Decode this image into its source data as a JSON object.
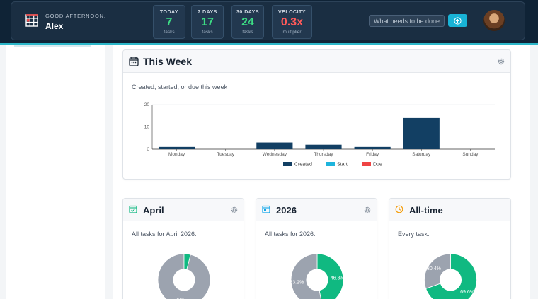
{
  "header": {
    "greeting": "GOOD AFTERNOON,",
    "username": "Alex",
    "stats": [
      {
        "label": "TODAY",
        "value": "7",
        "sub": "tasks"
      },
      {
        "label": "7 DAYS",
        "value": "17",
        "sub": "tasks"
      },
      {
        "label": "30 DAYS",
        "value": "24",
        "sub": "tasks"
      },
      {
        "label": "VELOCITY",
        "value": "0.3x",
        "sub": "multiplier"
      }
    ],
    "search_placeholder": "What needs to be done?",
    "icons": {
      "logo": "calendar-grid-icon",
      "add": "plus-circle-icon",
      "avatar": "user-avatar"
    }
  },
  "this_week": {
    "title": "This Week",
    "description": "Created, started, or due this week",
    "icons": {
      "title": "calendar-week-icon",
      "settings": "gear-icon"
    }
  },
  "cards": [
    {
      "title": "April",
      "description": "All tasks for April 2026.",
      "icon": "calendar-check-icon",
      "icon_color": "#10b981",
      "has_gear": true
    },
    {
      "title": "2026",
      "description": "All tasks for 2026.",
      "icon": "calendar-card-icon",
      "icon_color": "#0ea5e9",
      "has_gear": true
    },
    {
      "title": "All-time",
      "description": "Every task.",
      "icon": "clock-icon",
      "icon_color": "#f59e0b",
      "has_gear": false
    }
  ],
  "colors": {
    "created": "#123f63",
    "start": "#1eb4dc",
    "due": "#ef4444",
    "done": "#10b981",
    "open": "#9ca3af"
  },
  "chart_data": [
    {
      "type": "bar",
      "categories": [
        "Monday",
        "Tuesday",
        "Wednesday",
        "Thursday",
        "Friday",
        "Saturday",
        "Sunday"
      ],
      "series": [
        {
          "name": "Created",
          "values": [
            1,
            0,
            3,
            2,
            1,
            14,
            0
          ]
        },
        {
          "name": "Start",
          "values": [
            0,
            0,
            0,
            0,
            0,
            0,
            0
          ]
        },
        {
          "name": "Due",
          "values": [
            0,
            0,
            0,
            0,
            0,
            0,
            0
          ]
        }
      ],
      "ylim": [
        0,
        20
      ],
      "yticks": [
        0,
        10,
        20
      ],
      "grid": true,
      "legend": "bottom"
    },
    {
      "type": "pie",
      "slices": [
        {
          "value": 96,
          "label": "96%"
        },
        {
          "value": 4,
          "label": ""
        }
      ]
    },
    {
      "type": "pie",
      "slices": [
        {
          "value": 53.2,
          "label": "53.2%"
        },
        {
          "value": 46.8,
          "label": "46.8%"
        }
      ]
    },
    {
      "type": "pie",
      "slices": [
        {
          "value": 30.4,
          "label": "30.4%"
        },
        {
          "value": 69.6,
          "label": "69.6%"
        }
      ]
    }
  ]
}
